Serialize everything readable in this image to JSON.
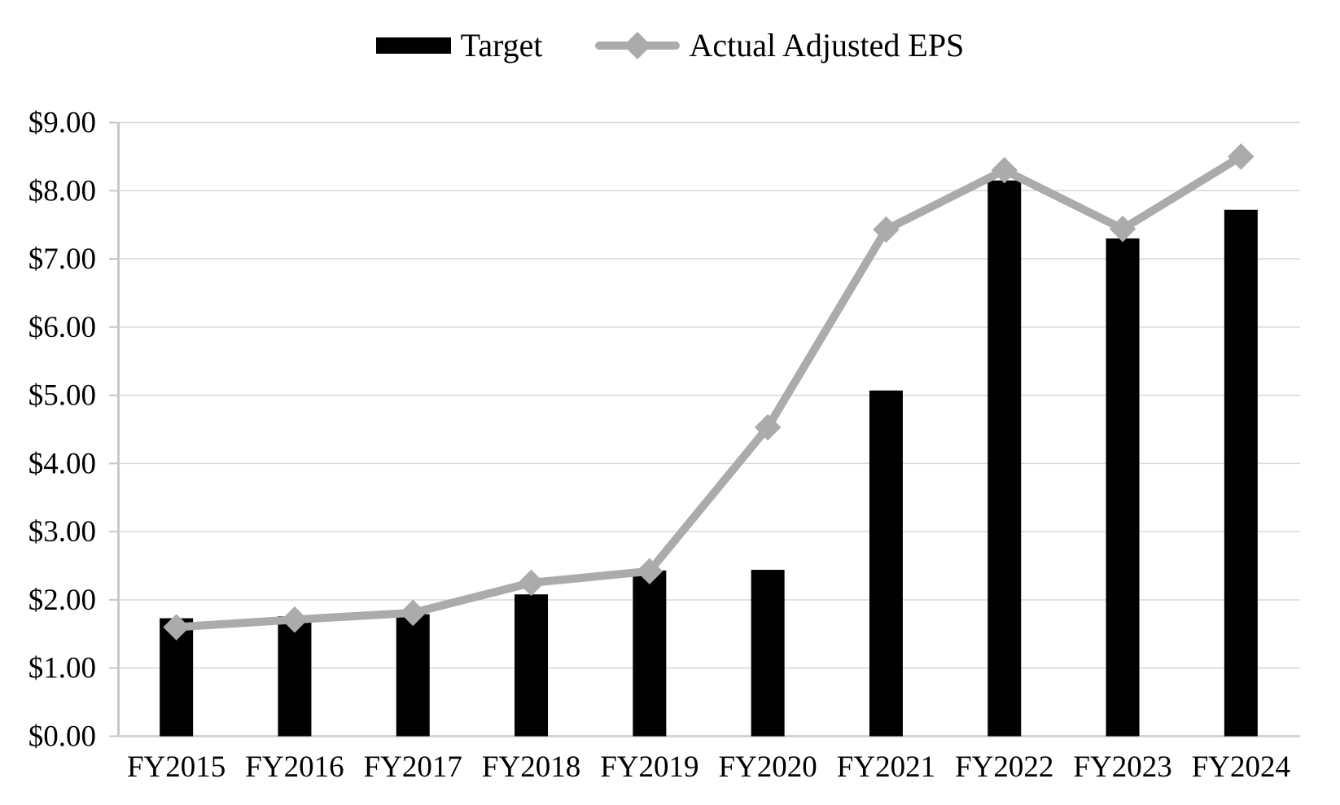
{
  "page": {
    "background_color": "#ffffff",
    "text_color": "#000000"
  },
  "legend": {
    "position": "top-center",
    "items": [
      {
        "label": "Target",
        "swatch": "bar",
        "color": "#000000"
      },
      {
        "label": "Actual Adjusted EPS",
        "swatch": "line-diamond",
        "color": "#ababab"
      }
    ]
  },
  "chart_data": {
    "type": "bar",
    "subtype": "bar-with-line-overlay",
    "title": "",
    "xlabel": "",
    "ylabel": "",
    "categories": [
      "FY2015",
      "FY2016",
      "FY2017",
      "FY2018",
      "FY2019",
      "FY2020",
      "FY2021",
      "FY2022",
      "FY2023",
      "FY2024"
    ],
    "series": [
      {
        "name": "Target",
        "type": "bar",
        "color": "#000000",
        "values": [
          1.73,
          1.76,
          1.79,
          2.08,
          2.43,
          2.44,
          5.07,
          8.15,
          7.3,
          7.72
        ]
      },
      {
        "name": "Actual Adjusted EPS",
        "type": "line",
        "marker": "diamond",
        "color": "#ababab",
        "values": [
          1.6,
          1.71,
          1.81,
          2.25,
          2.42,
          4.53,
          7.43,
          8.3,
          7.44,
          8.5
        ]
      }
    ],
    "ylim": [
      0,
      9
    ],
    "ytick_values": [
      0,
      1,
      2,
      3,
      4,
      5,
      6,
      7,
      8,
      9
    ],
    "ytick_labels": [
      "$0.00",
      "$1.00",
      "$2.00",
      "$3.00",
      "$4.00",
      "$5.00",
      "$6.00",
      "$7.00",
      "$8.00",
      "$9.00"
    ],
    "grid": "horizontal-major",
    "grid_color": "#d9d9d9",
    "axis_color": "#c8c8c8",
    "legend_position": "top"
  }
}
